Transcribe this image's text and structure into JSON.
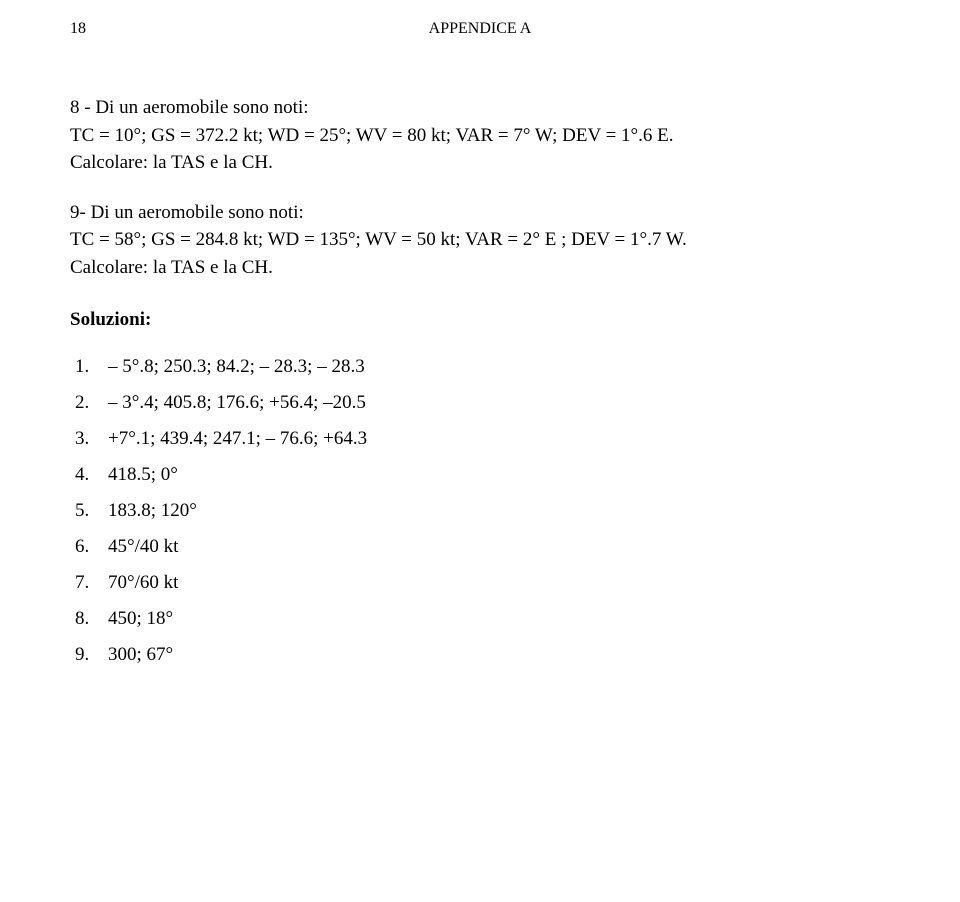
{
  "page_number": "18",
  "header": "APPENDICE A",
  "problem8": {
    "lead": "8 - Di un aeromobile sono noti:",
    "data": "TC = 10°; GS = 372.2 kt; WD = 25°; WV = 80 kt; VAR = 7° W; DEV = 1°.6 E.",
    "ask": "Calcolare: la TAS e la CH."
  },
  "problem9": {
    "lead": "9- Di un aeromobile sono noti:",
    "data": "TC = 58°; GS = 284.8 kt; WD = 135°; WV = 50 kt; VAR = 2° E ; DEV = 1°.7 W.",
    "ask": "Calcolare: la TAS e la CH."
  },
  "solutions_heading": "Soluzioni:",
  "solutions": [
    "– 5°.8; 250.3; 84.2; – 28.3; – 28.3",
    "– 3°.4; 405.8; 176.6; +56.4; –20.5",
    "+7°.1; 439.4; 247.1; – 76.6; +64.3",
    "418.5;  0°",
    "183.8;  120°",
    "45°/40 kt",
    "70°/60 kt",
    "450; 18°",
    "300; 67°"
  ]
}
